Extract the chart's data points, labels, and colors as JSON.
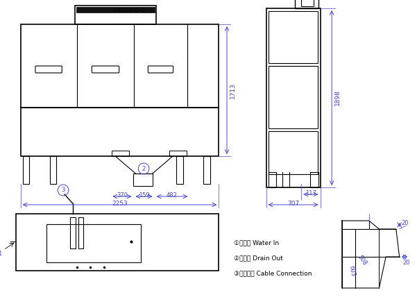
{
  "bg_color": "#ffffff",
  "line_color": "#000000",
  "dim_color": "#4444cc",
  "lw_main": 1.0,
  "lw_thin": 0.6,
  "fs_dim": 6.5,
  "labels": {
    "dim_1713": "1713",
    "dim_2253": "2253",
    "dim_370": "370",
    "dim_159": "159",
    "dim_482": "482",
    "dim_1898": "1898",
    "dim_707": "707",
    "dim_117": "117",
    "dim_20a": "20",
    "dim_20b": "20",
    "dim_508": "508",
    "dim_603": "603",
    "legend_1": "①进水口 Water In",
    "legend_2": "②排水口 Drain Out",
    "legend_3": "③电源连接 Cable Connection",
    "circ1": "1",
    "circ2": "2",
    "circ3": "3"
  }
}
